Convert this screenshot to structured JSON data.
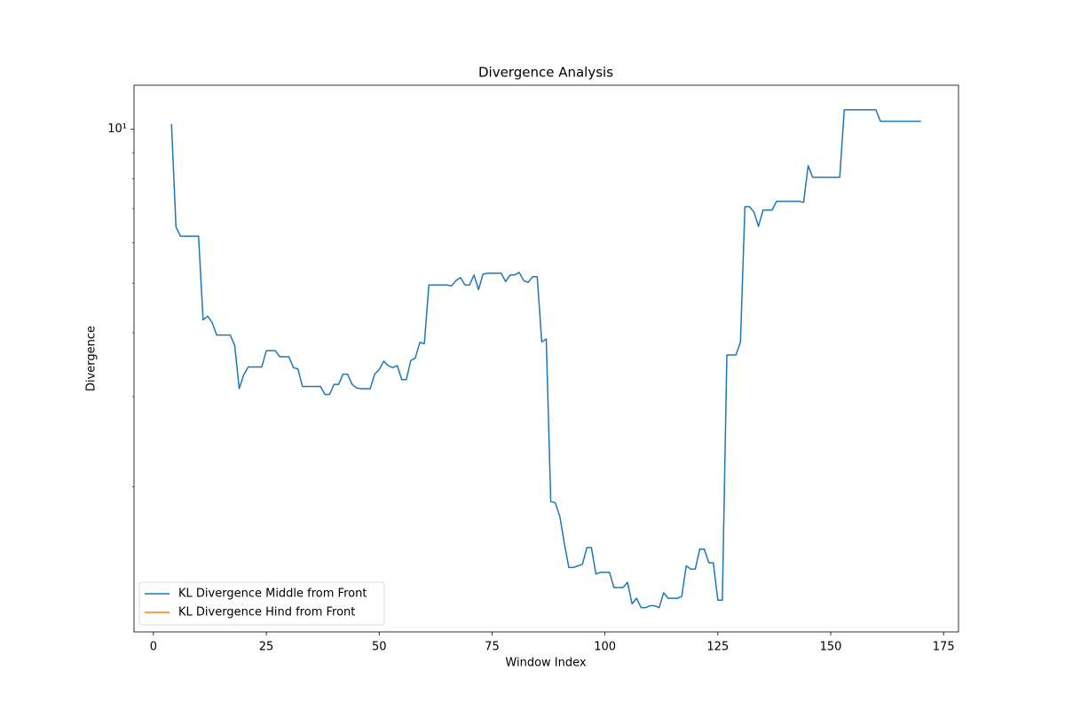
{
  "chart_data": {
    "type": "line",
    "title": "Divergence Analysis",
    "x_label": "Window Index",
    "y_label": "Divergence",
    "x": [
      4,
      5,
      6,
      7,
      8,
      9,
      10,
      11,
      12,
      13,
      14,
      15,
      16,
      17,
      18,
      19,
      20,
      21,
      22,
      23,
      24,
      25,
      26,
      27,
      28,
      29,
      30,
      31,
      32,
      33,
      34,
      35,
      36,
      37,
      38,
      39,
      40,
      41,
      42,
      43,
      44,
      45,
      46,
      47,
      48,
      49,
      50,
      51,
      52,
      53,
      54,
      55,
      56,
      57,
      58,
      59,
      60,
      61,
      62,
      63,
      64,
      65,
      66,
      67,
      68,
      69,
      70,
      71,
      72,
      73,
      74,
      75,
      76,
      77,
      78,
      79,
      80,
      81,
      82,
      83,
      84,
      85,
      86,
      87,
      88,
      89,
      90,
      91,
      92,
      93,
      94,
      95,
      96,
      97,
      98,
      99,
      100,
      101,
      102,
      103,
      104,
      105,
      106,
      107,
      108,
      109,
      110,
      111,
      112,
      113,
      114,
      115,
      116,
      117,
      118,
      119,
      120,
      121,
      122,
      123,
      124,
      125,
      126,
      127,
      128,
      129,
      130,
      131,
      132,
      133,
      134,
      135,
      136,
      137,
      138,
      139,
      140,
      141,
      142,
      143,
      144,
      145,
      146,
      147,
      148,
      149,
      150,
      151,
      152,
      153,
      154,
      155,
      156,
      157,
      158,
      159,
      160,
      161,
      162,
      163,
      164,
      165,
      166,
      167,
      168,
      169,
      170
    ],
    "series": [
      {
        "name": "KL Divergence Middle from Front",
        "color": "#1f77b4",
        "values": [
          10.24,
          6.44,
          6.18,
          6.18,
          6.18,
          6.18,
          6.18,
          4.24,
          4.31,
          4.19,
          3.96,
          3.96,
          3.96,
          3.96,
          3.78,
          3.11,
          3.31,
          3.43,
          3.43,
          3.43,
          3.43,
          3.69,
          3.69,
          3.69,
          3.59,
          3.59,
          3.59,
          3.42,
          3.4,
          3.14,
          3.14,
          3.14,
          3.14,
          3.14,
          3.03,
          3.03,
          3.17,
          3.17,
          3.32,
          3.32,
          3.17,
          3.12,
          3.11,
          3.11,
          3.11,
          3.32,
          3.39,
          3.52,
          3.45,
          3.42,
          3.45,
          3.24,
          3.24,
          3.53,
          3.57,
          3.83,
          3.81,
          4.96,
          4.96,
          4.96,
          4.96,
          4.96,
          4.94,
          5.06,
          5.13,
          4.96,
          4.96,
          5.19,
          4.86,
          5.21,
          5.23,
          5.23,
          5.23,
          5.23,
          5.04,
          5.19,
          5.19,
          5.25,
          5.06,
          5.02,
          5.15,
          5.15,
          3.84,
          3.89,
          1.87,
          1.86,
          1.75,
          1.55,
          1.39,
          1.39,
          1.4,
          1.41,
          1.52,
          1.52,
          1.35,
          1.36,
          1.36,
          1.36,
          1.27,
          1.27,
          1.27,
          1.3,
          1.18,
          1.21,
          1.16,
          1.16,
          1.17,
          1.17,
          1.16,
          1.24,
          1.21,
          1.21,
          1.21,
          1.22,
          1.4,
          1.38,
          1.38,
          1.51,
          1.51,
          1.42,
          1.42,
          1.2,
          1.2,
          3.62,
          3.62,
          3.62,
          3.83,
          7.06,
          7.06,
          6.89,
          6.46,
          6.95,
          6.95,
          6.95,
          7.23,
          7.23,
          7.23,
          7.23,
          7.23,
          7.23,
          7.2,
          8.49,
          8.06,
          8.06,
          8.06,
          8.06,
          8.06,
          8.06,
          8.06,
          10.92,
          10.92,
          10.92,
          10.92,
          10.92,
          10.92,
          10.92,
          10.92,
          10.37,
          10.37,
          10.37,
          10.37,
          10.37,
          10.37,
          10.37,
          10.37,
          10.37,
          10.37
        ]
      },
      {
        "name": "KL Divergence Hind from Front",
        "color": "#ff7f0e",
        "values": [
          null,
          null,
          null,
          null,
          null,
          null,
          null,
          null,
          null,
          null,
          null,
          null,
          null,
          null,
          null,
          null,
          null,
          null,
          null,
          null,
          null,
          null,
          null,
          null,
          null,
          null,
          null,
          null,
          null,
          null,
          null,
          null,
          null,
          null,
          null,
          null,
          null,
          null,
          null,
          null,
          null,
          null,
          null,
          null,
          null,
          null,
          null,
          null,
          null,
          null,
          null,
          null,
          null,
          null,
          null,
          null,
          null,
          null,
          null,
          null,
          null,
          null,
          null,
          null,
          null,
          null,
          null,
          null,
          null,
          null,
          null,
          null,
          null,
          null,
          null,
          null,
          null,
          null,
          null,
          null,
          null,
          null,
          null,
          null,
          null,
          null,
          null,
          null,
          null,
          null,
          null,
          null,
          null,
          null,
          null,
          null,
          null,
          null,
          null,
          null,
          null,
          null,
          null,
          null,
          null,
          null,
          null,
          null,
          null,
          null,
          null,
          null,
          null,
          null,
          null,
          null,
          null,
          null,
          null,
          null,
          null,
          null,
          null,
          null,
          null,
          null,
          null,
          null,
          null,
          null,
          null,
          null,
          null,
          null,
          null,
          null,
          null,
          null,
          null,
          null,
          null,
          null,
          null,
          null,
          null,
          null,
          null,
          null,
          null,
          null,
          null,
          null,
          null,
          null,
          null,
          null,
          null,
          null,
          null,
          null,
          null,
          null,
          null,
          null,
          null,
          null,
          null
        ]
      }
    ],
    "xlim": [
      -4.3,
      178.3
    ],
    "xticks": [
      0,
      25,
      50,
      75,
      100,
      125,
      150,
      175
    ],
    "ylim": [
      1.04,
      12.2
    ],
    "y_log": true,
    "yticks": [
      {
        "value": 10,
        "label": "10¹"
      }
    ],
    "yminorticks": [
      2,
      3,
      4,
      5,
      6,
      7,
      8,
      9
    ],
    "legend": "lower left"
  }
}
